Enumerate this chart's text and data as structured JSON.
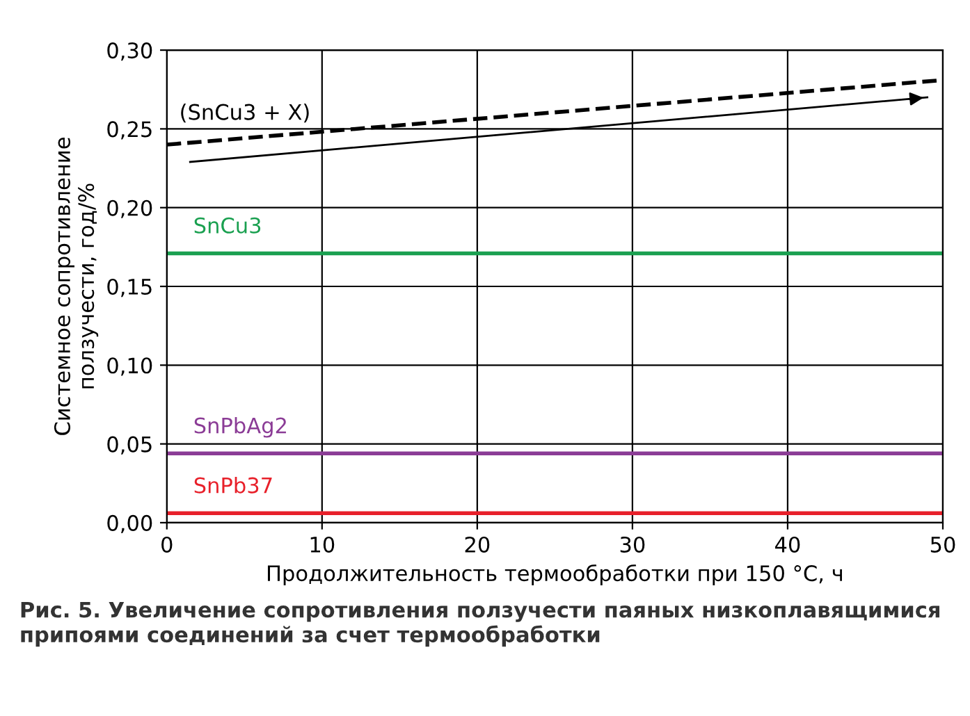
{
  "chart_data": {
    "type": "line",
    "xlabel": "Продолжительность термообработки при 150 °C, ч",
    "ylabel": "Системное сопротивление\nползучести, год/%",
    "xlim": [
      0,
      50
    ],
    "ylim": [
      0,
      0.3
    ],
    "xticks": [
      0,
      10,
      20,
      30,
      40,
      50
    ],
    "yticks": [
      {
        "value": 0,
        "label": "0,00"
      },
      {
        "value": 0.05,
        "label": "0,05"
      },
      {
        "value": 0.1,
        "label": "0,10"
      },
      {
        "value": 0.15,
        "label": "0,15"
      },
      {
        "value": 0.2,
        "label": "0,20"
      },
      {
        "value": 0.25,
        "label": "0,25"
      },
      {
        "value": 0.3,
        "label": "0,30"
      }
    ],
    "grid": true,
    "marker": "none",
    "series": [
      {
        "name": "(SnCu3 + X)",
        "color": "#000000",
        "line_style": "dashed",
        "x": [
          0,
          50
        ],
        "values": [
          0.24,
          0.281
        ]
      },
      {
        "color": "#000000",
        "line_style": "solid",
        "x": [
          1.5,
          49
        ],
        "values": [
          0.229,
          0.27
        ]
      },
      {
        "name": "SnCu3",
        "color": "#1aa050",
        "line_style": "solid",
        "x": [
          0,
          50
        ],
        "values": [
          0.171,
          0.171
        ]
      },
      {
        "name": "SnPbAg2",
        "color": "#8b3c96",
        "line_style": "solid",
        "x": [
          0,
          50
        ],
        "values": [
          0.044,
          0.044
        ]
      },
      {
        "name": "SnPb37",
        "color": "#e8202a",
        "line_style": "solid",
        "x": [
          0,
          50
        ],
        "values": [
          0.006,
          0.006
        ]
      }
    ],
    "annotations": [
      "Рис. 5. Увеличение сопротивления ползучести паяных низкоплавящимися припоями соединений за счет термообработки"
    ]
  }
}
